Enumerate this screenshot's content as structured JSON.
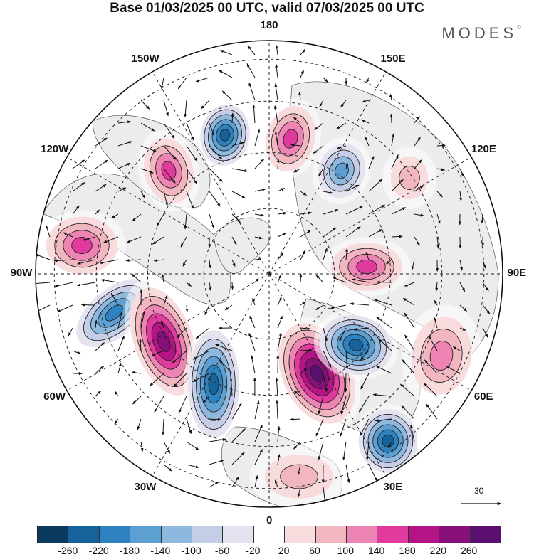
{
  "header": {
    "title": "Base 01/03/2025 00 UTC, valid 07/03/2025 00 UTC",
    "brand": "MODES",
    "brand_mark": "©"
  },
  "map": {
    "projection": "polar-stereographic-north",
    "longitude_labels": [
      "180",
      "150E",
      "120E",
      "90E",
      "60E",
      "30E",
      "0",
      "30W",
      "60W",
      "90W",
      "120W",
      "150W"
    ],
    "land_color": "#ececec",
    "ocean_color": "#ffffff"
  },
  "vector_reference": {
    "label": "30"
  },
  "colorbar": {
    "colors": [
      "#0b3a5f",
      "#15639a",
      "#2e82bf",
      "#5c9fd0",
      "#8fb8df",
      "#c4cfe7",
      "#e6e3f0",
      "#ffffff",
      "#f8dbdd",
      "#f2b6c1",
      "#ee84b3",
      "#e03a9c",
      "#b51487",
      "#87107a",
      "#5b0f6f"
    ],
    "tick_labels": [
      "-260",
      "-220",
      "-180",
      "-140",
      "-100",
      "-60",
      "-20",
      "20",
      "60",
      "100",
      "140",
      "180",
      "220",
      "260"
    ]
  }
}
